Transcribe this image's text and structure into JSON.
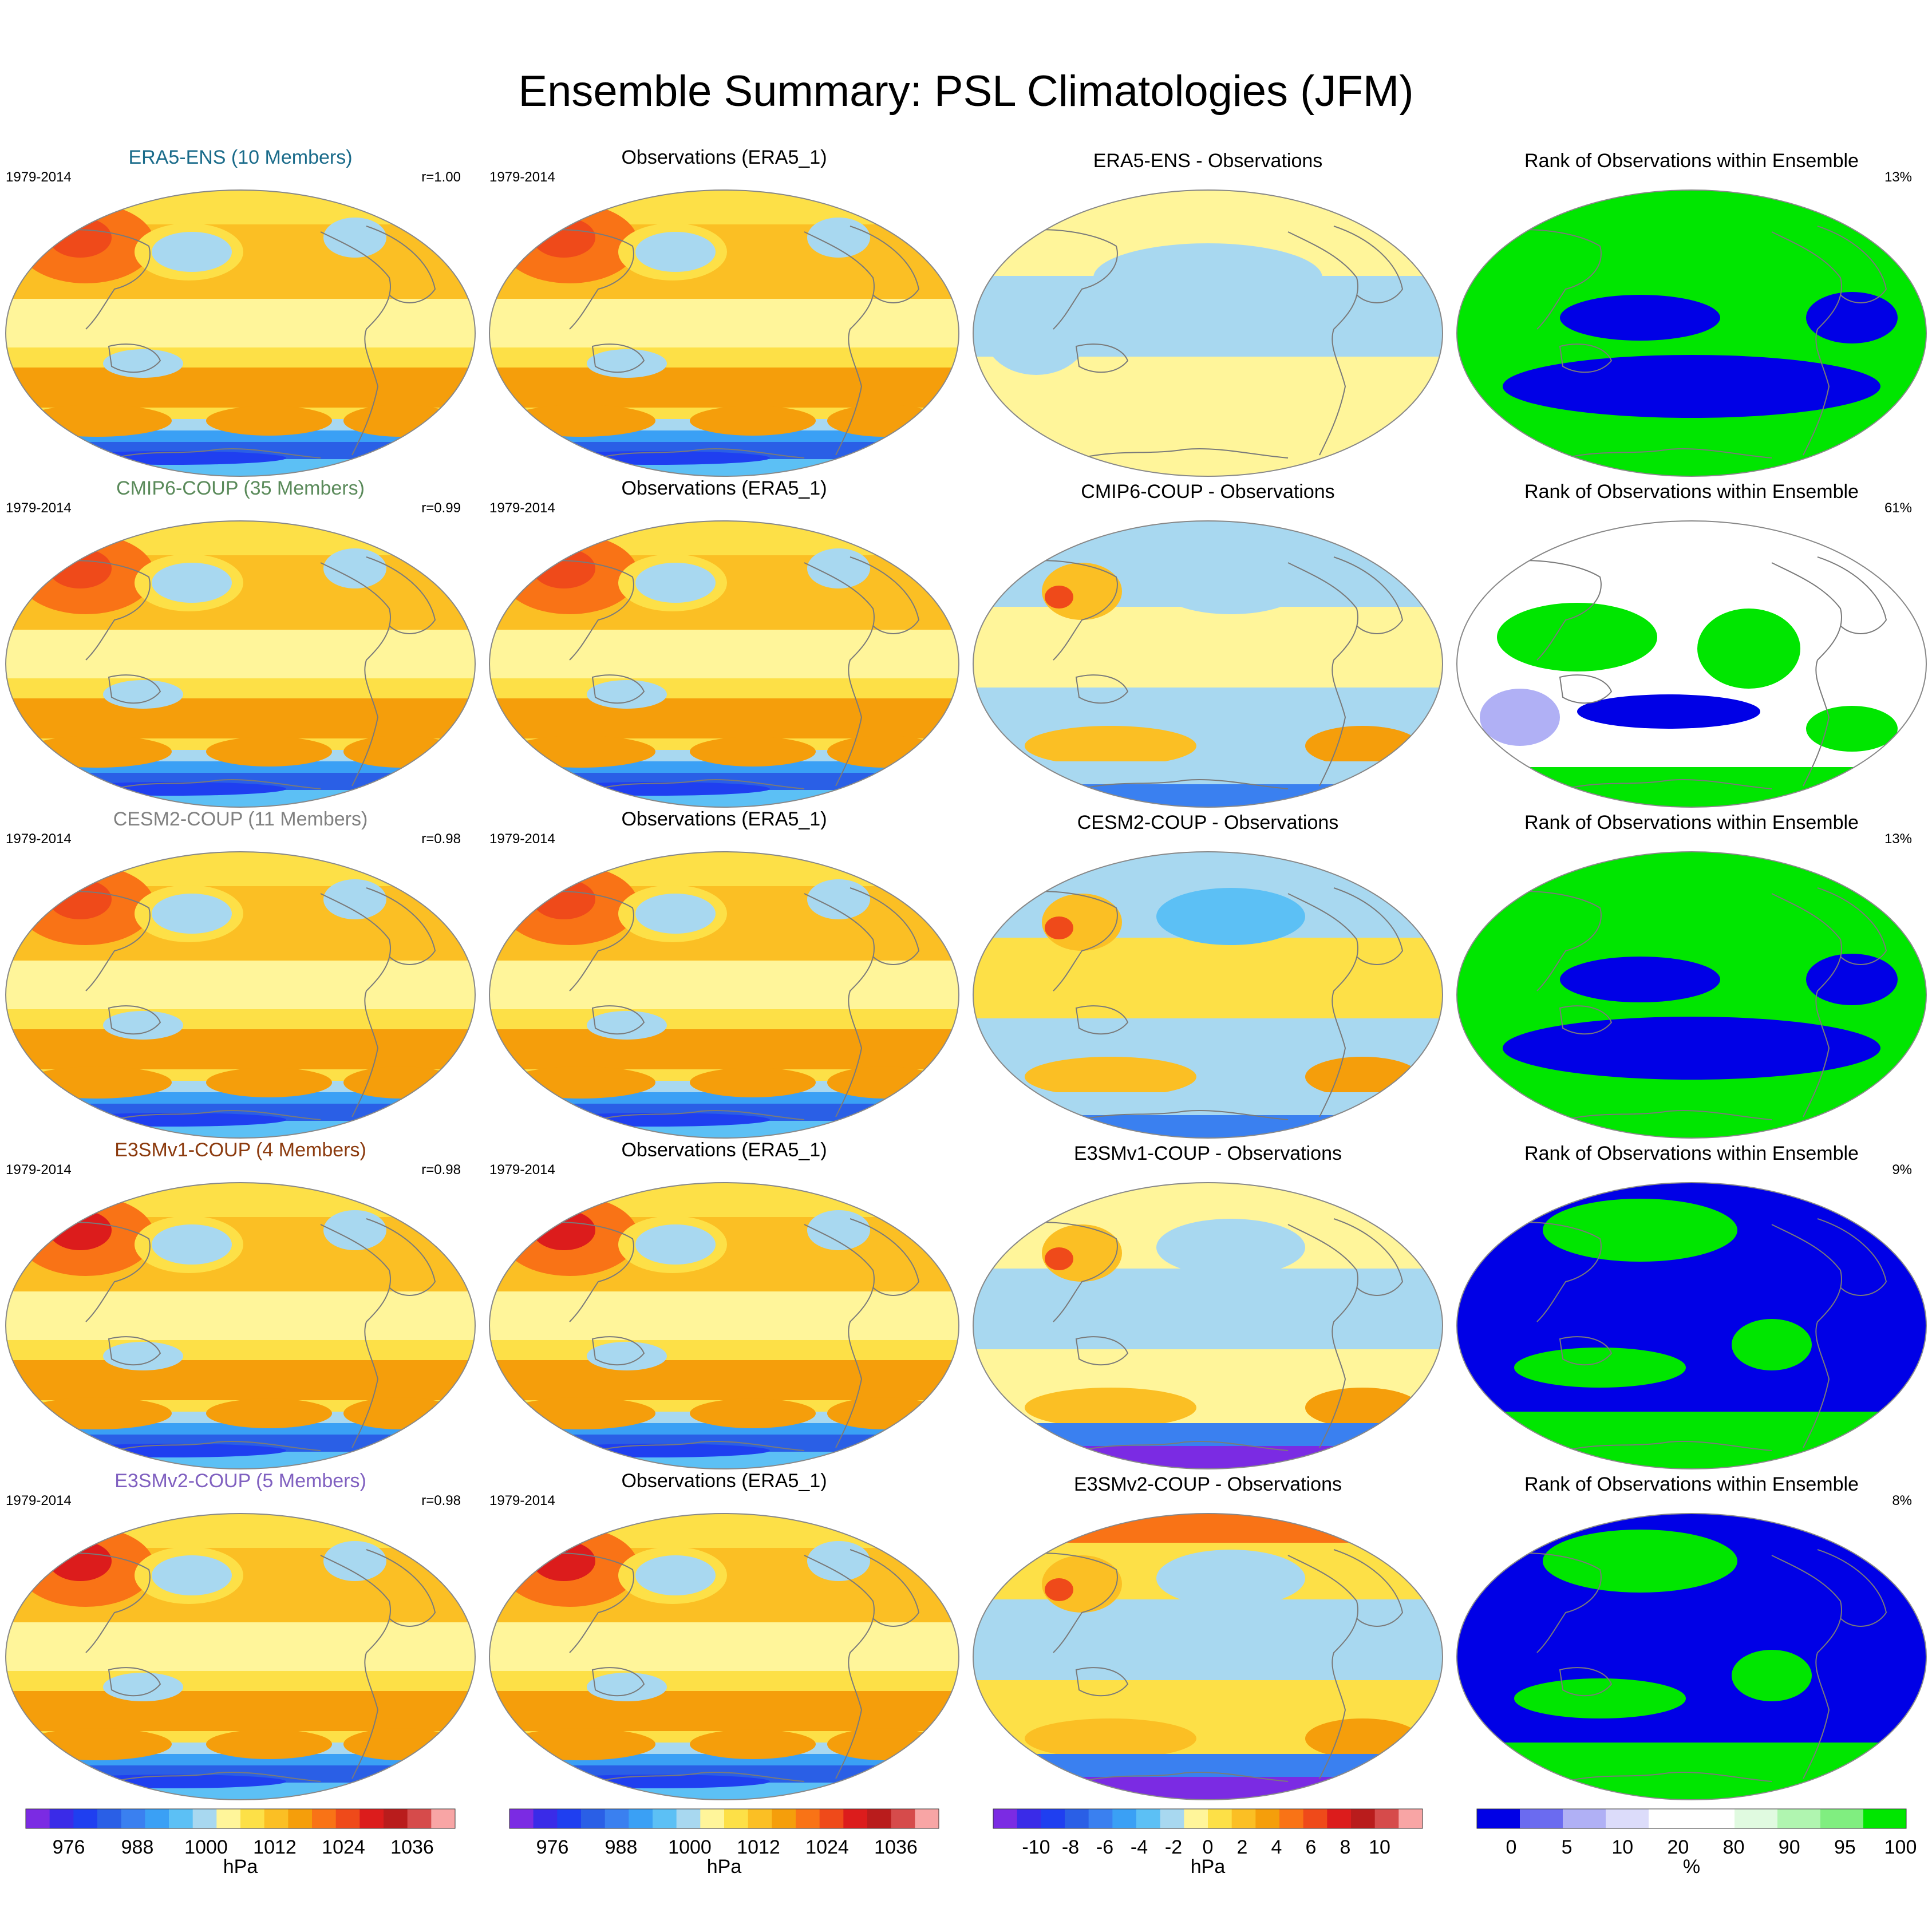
{
  "title": "Ensemble Summary: PSL Climatologies (JFM)",
  "rows": [
    {
      "model": {
        "title": "ERA5-ENS (10 Members)",
        "color": "#1a6b8a",
        "period": "1979-2014",
        "corr": "r=1.00"
      },
      "obs": {
        "title": "Observations (ERA5_1)",
        "period": "1979-2014"
      },
      "diff": {
        "title": "ERA5-ENS - Observations"
      },
      "rank": {
        "title": "Rank of Observations within Ensemble",
        "pct": "13%"
      }
    },
    {
      "model": {
        "title": "CMIP6-COUP (35 Members)",
        "color": "#5a8a5a",
        "period": "1979-2014",
        "corr": "r=0.99"
      },
      "obs": {
        "title": "Observations (ERA5_1)",
        "period": "1979-2014"
      },
      "diff": {
        "title": "CMIP6-COUP - Observations"
      },
      "rank": {
        "title": "Rank of Observations within Ensemble",
        "pct": "61%"
      }
    },
    {
      "model": {
        "title": "CESM2-COUP (11 Members)",
        "color": "#808080",
        "period": "1979-2014",
        "corr": "r=0.98"
      },
      "obs": {
        "title": "Observations (ERA5_1)",
        "period": "1979-2014"
      },
      "diff": {
        "title": "CESM2-COUP - Observations"
      },
      "rank": {
        "title": "Rank of Observations within Ensemble",
        "pct": "13%"
      }
    },
    {
      "model": {
        "title": "E3SMv1-COUP (4 Members)",
        "color": "#8b3a0e",
        "period": "1979-2014",
        "corr": "r=0.98"
      },
      "obs": {
        "title": "Observations (ERA5_1)",
        "period": "1979-2014"
      },
      "diff": {
        "title": "E3SMv1-COUP - Observations"
      },
      "rank": {
        "title": "Rank of Observations within Ensemble",
        "pct": "9%"
      }
    },
    {
      "model": {
        "title": "E3SMv2-COUP (5 Members)",
        "color": "#8060c0",
        "period": "1979-2014",
        "corr": "r=0.98"
      },
      "obs": {
        "title": "Observations (ERA5_1)",
        "period": "1979-2014"
      },
      "diff": {
        "title": "E3SMv2-COUP - Observations"
      },
      "rank": {
        "title": "Rank of Observations within Ensemble",
        "pct": "8%"
      }
    }
  ],
  "colorbars": [
    {
      "colors": [
        "#7b2be3",
        "#3a2be8",
        "#1f3ff0",
        "#2a5fe6",
        "#3a80f0",
        "#3aa0f5",
        "#5cc0f5",
        "#a8d8f0",
        "#fff59a",
        "#fde047",
        "#fbbf24",
        "#f59e0b",
        "#f97316",
        "#ef4a1a",
        "#dc1c1c",
        "#b91c1c",
        "#d64b4b",
        "#f8a5a5"
      ],
      "labels": [
        "976",
        "988",
        "1000",
        "1012",
        "1024",
        "1036"
      ],
      "unit": "hPa"
    },
    {
      "colors": [
        "#7b2be3",
        "#3a2be8",
        "#1f3ff0",
        "#2a5fe6",
        "#3a80f0",
        "#3aa0f5",
        "#5cc0f5",
        "#a8d8f0",
        "#fff59a",
        "#fde047",
        "#fbbf24",
        "#f59e0b",
        "#f97316",
        "#ef4a1a",
        "#dc1c1c",
        "#b91c1c",
        "#d64b4b",
        "#f8a5a5"
      ],
      "labels": [
        "976",
        "988",
        "1000",
        "1012",
        "1024",
        "1036"
      ],
      "unit": "hPa"
    },
    {
      "colors": [
        "#7b2be3",
        "#3a2be8",
        "#1f3ff0",
        "#2a5fe6",
        "#3a80f0",
        "#3aa0f5",
        "#5cc0f5",
        "#a8d8f0",
        "#fff59a",
        "#fde047",
        "#fbbf24",
        "#f59e0b",
        "#f97316",
        "#ef4a1a",
        "#dc1c1c",
        "#b91c1c",
        "#d64b4b",
        "#f8a5a5"
      ],
      "labels": [
        "-10",
        "-8",
        "-6",
        "-4",
        "-2",
        "0",
        "2",
        "4",
        "6",
        "8",
        "10"
      ],
      "unit": "hPa"
    },
    {
      "colors": [
        "#0000e6",
        "#6b6bf0",
        "#b0b0f5",
        "#dcdcfa",
        "#ffffff",
        "#ffffff",
        "#e0fae0",
        "#b0f5b0",
        "#80ee80",
        "#00e600"
      ],
      "labels": [
        "0",
        "5",
        "10",
        "20",
        "80",
        "90",
        "95",
        "100"
      ],
      "unit": "%"
    }
  ]
}
